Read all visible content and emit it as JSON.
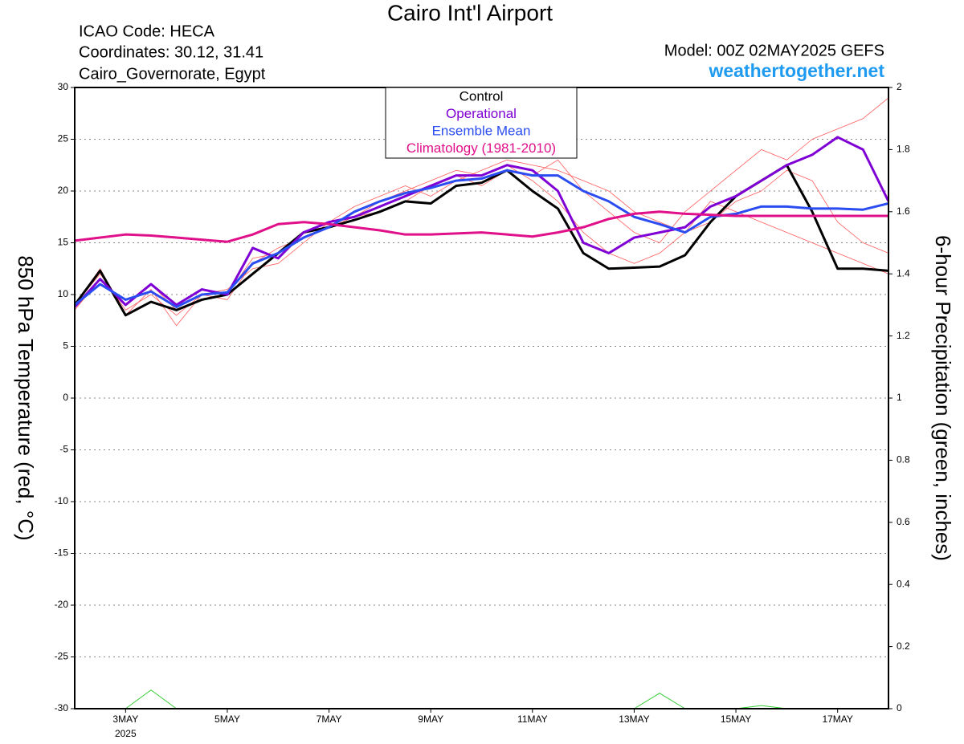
{
  "chart_data": {
    "type": "line",
    "title": "Cairo Int'l Airport",
    "info": [
      "ICAO Code: HECA",
      "Coordinates: 30.12, 31.41",
      "Cairo_Governorate, Egypt"
    ],
    "model": "Model: 00Z 02MAY2025 GEFS",
    "site": "weathertogether.net",
    "ylabel": "850 hPa Temperature (red, °C)",
    "y2label": "6-hour Precipitation (green, inches)",
    "year_label": "2025",
    "x": [
      2,
      2.5,
      3,
      3.5,
      4,
      4.5,
      5,
      5.5,
      6,
      6.5,
      7,
      7.5,
      8,
      8.5,
      9,
      9.5,
      10,
      10.5,
      11,
      11.5,
      12,
      12.5,
      13,
      13.5,
      14,
      14.5,
      15,
      15.5,
      16,
      16.5,
      17,
      17.5,
      18
    ],
    "xlim": [
      2,
      18
    ],
    "xticks": [
      {
        "value": 3,
        "label": "3MAY"
      },
      {
        "value": 5,
        "label": "5MAY"
      },
      {
        "value": 7,
        "label": "7MAY"
      },
      {
        "value": 9,
        "label": "9MAY"
      },
      {
        "value": 11,
        "label": "11MAY"
      },
      {
        "value": 13,
        "label": "13MAY"
      },
      {
        "value": 15,
        "label": "15MAY"
      },
      {
        "value": 17,
        "label": "17MAY"
      }
    ],
    "ylim": [
      -30,
      30
    ],
    "yticks": [
      -30,
      -25,
      -20,
      -15,
      -10,
      -5,
      0,
      5,
      10,
      15,
      20,
      25,
      30
    ],
    "y2lim": [
      0,
      2
    ],
    "y2ticks": [
      0,
      0.2,
      0.4,
      0.6,
      0.8,
      1,
      1.2,
      1.4,
      1.6,
      1.8,
      2
    ],
    "grid": true,
    "members": [
      {
        "color": "#ff5a5a",
        "values": [
          9,
          12,
          8.5,
          10,
          8,
          10,
          10.5,
          12.5,
          13,
          15,
          17,
          17.5,
          19,
          20,
          21,
          22,
          21.5,
          22.5,
          21,
          19,
          16,
          14,
          13,
          14,
          16,
          17,
          19,
          20,
          22,
          21,
          17,
          15,
          14
        ]
      },
      {
        "color": "#ff5a5a",
        "values": [
          8.5,
          11.5,
          9,
          11,
          8.5,
          9.5,
          10,
          13.5,
          14,
          16,
          17,
          18.5,
          19.5,
          20.5,
          19.5,
          21,
          22,
          23,
          22.5,
          22,
          21,
          20,
          18,
          17,
          16,
          19,
          18,
          17,
          16,
          15,
          14,
          13,
          12
        ]
      },
      {
        "color": "#ff5a5a",
        "values": [
          9,
          12.5,
          8,
          10.5,
          7,
          10,
          9.5,
          13,
          14.5,
          15.5,
          16.5,
          17.5,
          18,
          19,
          20.5,
          21.5,
          20.5,
          22,
          21.5,
          23,
          20,
          18,
          16,
          15,
          18,
          20,
          22,
          24,
          23,
          25,
          26,
          27,
          29
        ]
      }
    ],
    "precipitation": {
      "axis": "y2",
      "color": "#33cc33",
      "values": [
        0,
        0,
        0,
        0.06,
        0,
        0,
        0,
        0,
        0,
        0,
        0,
        0,
        0,
        0,
        0,
        0,
        0,
        0,
        0,
        0,
        0,
        0,
        0,
        0.05,
        0,
        0,
        0,
        0.01,
        0,
        0,
        0,
        0,
        0
      ]
    },
    "series": [
      {
        "name": "Control",
        "color": "#000000",
        "width": 3,
        "values": [
          9,
          12.3,
          8,
          9.3,
          8.5,
          9.5,
          10,
          12,
          14,
          16,
          16.5,
          17.2,
          18,
          19,
          18.8,
          20.5,
          20.8,
          22,
          20,
          18.3,
          14,
          12.5,
          12.6,
          12.7,
          13.8,
          17,
          19.5,
          21,
          22.5,
          18,
          12.5,
          12.5,
          12.3
        ]
      },
      {
        "name": "Operational",
        "color": "#7f00d4",
        "width": 3,
        "values": [
          8.8,
          11.5,
          9,
          11,
          9,
          10.5,
          10,
          14.5,
          13.5,
          16,
          17,
          17.5,
          18.5,
          19.5,
          20.5,
          21.5,
          21.5,
          22.5,
          22,
          20,
          15,
          14,
          15.5,
          16,
          16.5,
          18.5,
          19.5,
          21,
          22.5,
          23.5,
          25.2,
          24,
          19
        ]
      },
      {
        "name": "Ensemble Mean",
        "color": "#2a4cf0",
        "width": 3,
        "values": [
          9,
          11,
          9.5,
          10.3,
          8.8,
          10,
          10.2,
          13,
          14,
          15.5,
          16.5,
          18,
          19,
          19.8,
          20.3,
          21,
          21.2,
          22,
          21.5,
          21.5,
          20,
          19,
          17.5,
          16.8,
          16,
          17.5,
          17.8,
          18.5,
          18.5,
          18.3,
          18.3,
          18.2,
          18.8
        ]
      },
      {
        "name": "Climatology (1981-2010)",
        "color": "#e0108a",
        "width": 3,
        "values": [
          15.2,
          15.5,
          15.8,
          15.7,
          15.5,
          15.3,
          15.1,
          15.8,
          16.8,
          17,
          16.8,
          16.5,
          16.2,
          15.8,
          15.8,
          15.9,
          16,
          15.8,
          15.6,
          16,
          16.5,
          17.3,
          17.8,
          18,
          17.8,
          17.7,
          17.6,
          17.6,
          17.6,
          17.6,
          17.6,
          17.6,
          17.6
        ]
      }
    ]
  }
}
